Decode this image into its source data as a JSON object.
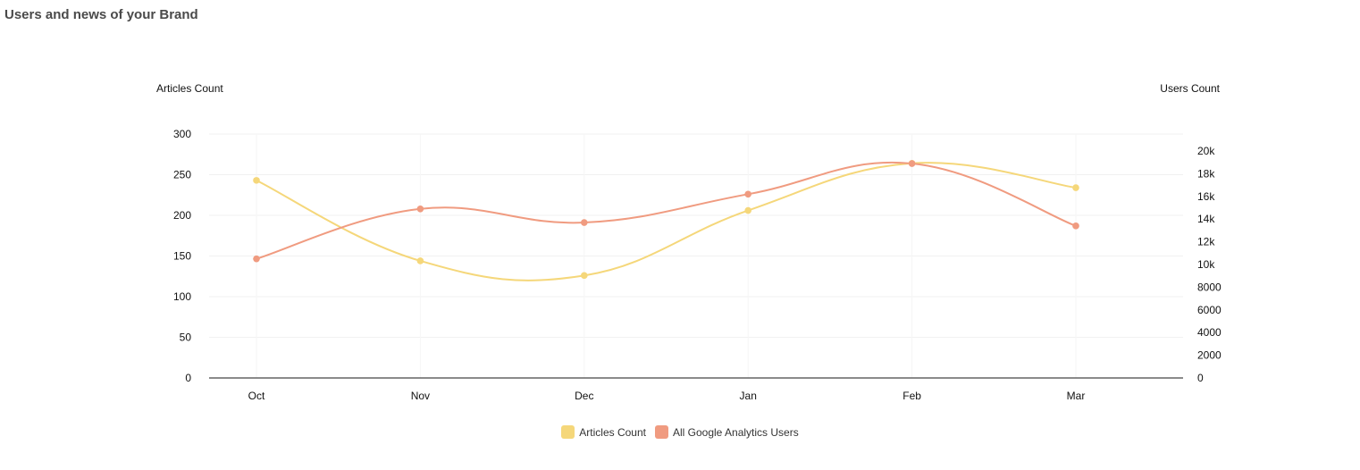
{
  "header": {
    "title": "Users and news of your Brand"
  },
  "chart_data": {
    "type": "line",
    "categories": [
      "Oct",
      "Nov",
      "Dec",
      "Jan",
      "Feb",
      "Mar"
    ],
    "left_axis": {
      "label": "Articles Count",
      "ylim": [
        0,
        300
      ],
      "ticks": [
        "0",
        "50",
        "100",
        "150",
        "200",
        "250",
        "300"
      ]
    },
    "right_axis": {
      "label": "Users Count",
      "ylim": [
        0,
        21500
      ],
      "ticks": [
        "0",
        "2000",
        "4000",
        "6000",
        "8000",
        "10k",
        "12k",
        "14k",
        "16k",
        "18k",
        "20k"
      ]
    },
    "series": [
      {
        "name": "Articles Count",
        "axis": "left",
        "color": "#f5d77a",
        "values": [
          243,
          144,
          126,
          206,
          264,
          234
        ]
      },
      {
        "name": "All Google Analytics Users",
        "axis": "right",
        "color": "#f09b80",
        "values": [
          10500,
          14900,
          13700,
          16200,
          18900,
          13400
        ]
      }
    ],
    "grid": true,
    "legend_position": "bottom"
  }
}
